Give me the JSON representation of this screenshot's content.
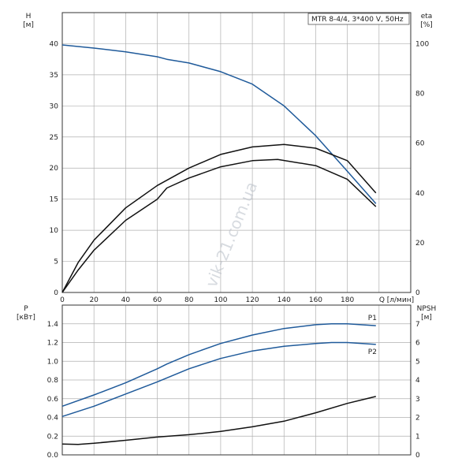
{
  "colors": {
    "blue": "#1f5a9a",
    "black": "#111111",
    "grid": "#b0b0b0"
  },
  "chart_data": [
    {
      "type": "line",
      "title": "MTR 8-4/4, 3*400 V, 50Hz",
      "ylabel": "H",
      "yunit": "[м]",
      "y2label": "eta",
      "y2unit": "[%]",
      "xlabel": "Q [л/мин]",
      "xlim": [
        0,
        220
      ],
      "ylim": [
        0,
        45
      ],
      "y2lim": [
        0,
        112.5
      ],
      "x_ticks": [
        "0",
        "20",
        "40",
        "60",
        "80",
        "100",
        "120",
        "140",
        "160",
        "180"
      ],
      "y_ticks": [
        "0",
        "5",
        "10",
        "15",
        "20",
        "25",
        "30",
        "35",
        "40"
      ],
      "y2_ticks": [
        "0",
        "20",
        "40",
        "60",
        "80",
        "100"
      ],
      "grid": true,
      "watermark": "vik-21.com.ua",
      "series": [
        {
          "axis": "left",
          "color": "blue",
          "x": [
            0,
            20,
            40,
            60,
            66,
            80,
            100,
            120,
            140,
            160,
            180,
            198
          ],
          "y": [
            39.8,
            39.3,
            38.7,
            37.9,
            37.5,
            36.9,
            35.5,
            33.5,
            30.0,
            25.2,
            19.5,
            14.3
          ]
        },
        {
          "axis": "right",
          "color": "black",
          "x": [
            0,
            10,
            20,
            40,
            60,
            80,
            100,
            120,
            140,
            160,
            180,
            198
          ],
          "y": [
            0,
            12,
            21,
            34,
            43,
            50,
            55.5,
            58.5,
            59.5,
            58,
            53,
            40
          ]
        },
        {
          "axis": "right",
          "color": "black",
          "x": [
            0,
            10,
            20,
            40,
            60,
            66,
            80,
            100,
            120,
            136,
            160,
            180,
            198
          ],
          "y": [
            0,
            9,
            17,
            29,
            37.5,
            42,
            46,
            50.5,
            53,
            53.5,
            51,
            45.5,
            34.5
          ]
        }
      ]
    },
    {
      "type": "line",
      "ylabel": "P",
      "yunit": "[кВт]",
      "y2label": "NPSH",
      "y2unit": "[м]",
      "xlim": [
        0,
        220
      ],
      "ylim": [
        0,
        1.6
      ],
      "y2lim": [
        0,
        8
      ],
      "y_ticks": [
        "0.0",
        "0.2",
        "0.4",
        "0.6",
        "0.8",
        "1.0",
        "1.2",
        "1.4"
      ],
      "y2_ticks": [
        "0",
        "1",
        "2",
        "3",
        "4",
        "5",
        "6",
        "7"
      ],
      "grid": true,
      "series": [
        {
          "name": "P1",
          "axis": "left",
          "color": "blue",
          "x": [
            0,
            20,
            40,
            60,
            66,
            80,
            100,
            120,
            140,
            160,
            170,
            180,
            198
          ],
          "y": [
            0.52,
            0.64,
            0.77,
            0.92,
            0.97,
            1.07,
            1.19,
            1.28,
            1.35,
            1.39,
            1.4,
            1.4,
            1.38
          ]
        },
        {
          "name": "P2",
          "axis": "left",
          "color": "blue",
          "x": [
            0,
            20,
            40,
            60,
            80,
            100,
            120,
            140,
            160,
            170,
            180,
            198
          ],
          "y": [
            0.41,
            0.52,
            0.65,
            0.78,
            0.92,
            1.03,
            1.11,
            1.16,
            1.19,
            1.2,
            1.2,
            1.18
          ]
        },
        {
          "axis": "right",
          "color": "black",
          "x": [
            0,
            10,
            20,
            40,
            60,
            80,
            100,
            120,
            140,
            160,
            180,
            198
          ],
          "y": [
            0.58,
            0.56,
            0.62,
            0.78,
            0.95,
            1.08,
            1.25,
            1.5,
            1.8,
            2.25,
            2.75,
            3.12
          ]
        }
      ]
    }
  ]
}
